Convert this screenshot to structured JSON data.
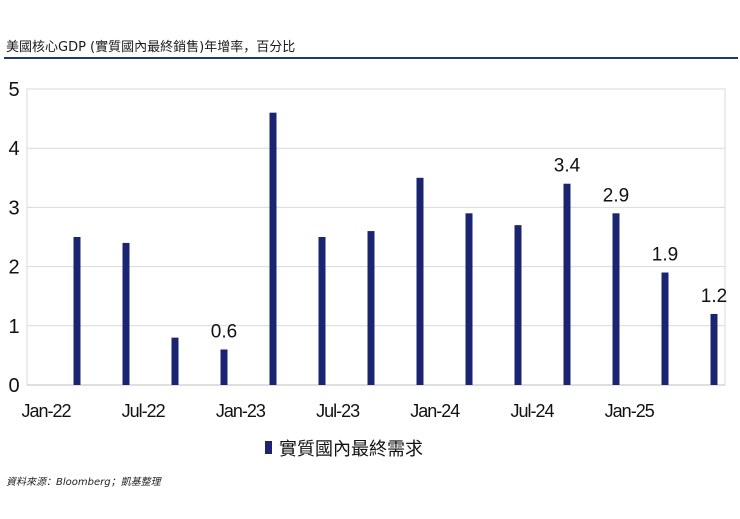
{
  "title": "美國核心GDP (實質國內最終銷售)年增率，百分比",
  "source": "資料來源：Bloomberg；凱基整理",
  "colors": {
    "bar": "#1a2470",
    "grid": "#d9d9d9",
    "rule": "#1f3a6e"
  },
  "chart_data": {
    "type": "bar",
    "x_tick_labels": [
      "Jan-22",
      "Jul-22",
      "Jan-23",
      "Jul-23",
      "Jan-24",
      "Jul-24",
      "Jan-25"
    ],
    "y_ticks": [
      "0",
      "1",
      "2",
      "3",
      "4",
      "5"
    ],
    "ylim": [
      0,
      5
    ],
    "grid": true,
    "legend_position": "bottom",
    "series": [
      {
        "name": "實質國內最終需求",
        "values": [
          2.5,
          2.4,
          0.8,
          0.6,
          4.6,
          2.5,
          2.6,
          3.5,
          2.9,
          2.7,
          3.4,
          2.9,
          1.9,
          1.2
        ]
      }
    ],
    "data_labels": [
      {
        "index": 3,
        "text": "0.6"
      },
      {
        "index": 10,
        "text": "3.4"
      },
      {
        "index": 11,
        "text": "2.9"
      },
      {
        "index": 12,
        "text": "1.9"
      },
      {
        "index": 13,
        "text": "1.2"
      }
    ]
  }
}
